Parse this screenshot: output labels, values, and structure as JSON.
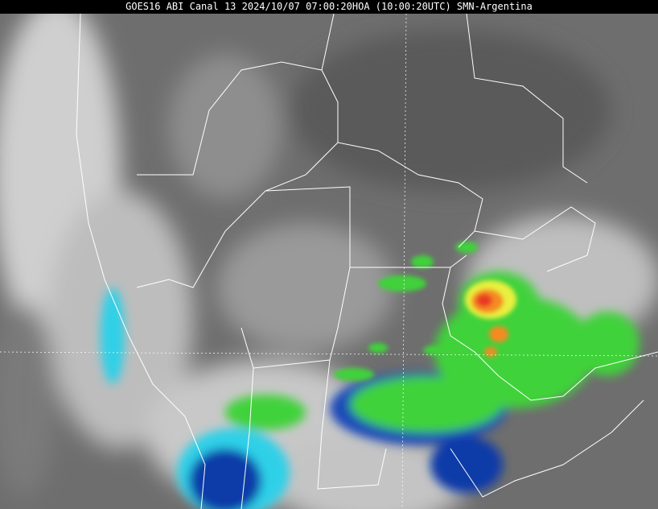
{
  "header": {
    "title": "GOES16 ABI Canal 13 2024/10/07 07:00:20HOA (10:00:20UTC) SMN-Argentina"
  },
  "image": {
    "product": "infrared satellite imagery",
    "colors": {
      "background_gray": "#6e6e6e",
      "cold_cloud_white": "#e6e6e6",
      "cyan": "#2fd0e8",
      "blue": "#0a3aa8",
      "green": "#3fd23a",
      "yellow": "#e8f040",
      "orange": "#f58a20",
      "red": "#e83a20",
      "borders": "#ffffff"
    }
  }
}
